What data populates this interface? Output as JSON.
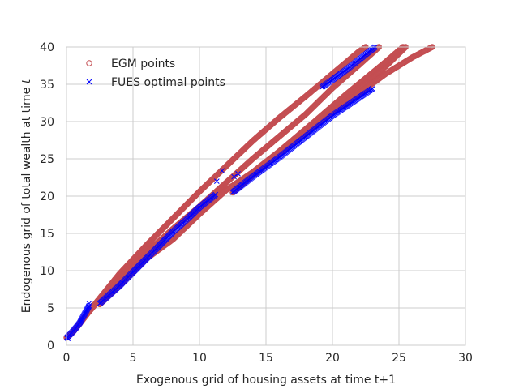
{
  "chart_data": {
    "type": "scatter",
    "title": "",
    "xlabel": "Exogenous grid of housing assets at time t+1",
    "ylabel_main": "Endogenous grid of total wealth at time ",
    "ylabel_var": "t",
    "xlim": [
      0,
      30
    ],
    "ylim": [
      0,
      40
    ],
    "xticks": [
      "0",
      "5",
      "10",
      "15",
      "20",
      "25",
      "30"
    ],
    "yticks": [
      "0",
      "5",
      "10",
      "15",
      "20",
      "25",
      "30",
      "35",
      "40"
    ],
    "grid": true,
    "legend_position": "top-left",
    "series": [
      {
        "name": "EGM points",
        "marker": "circle",
        "color": "#c44e52",
        "branches": [
          [
            [
              0,
              1.0
            ],
            [
              0.5,
              1.8
            ],
            [
              1.0,
              2.9
            ],
            [
              1.6,
              4.3
            ],
            [
              2.5,
              6.2
            ],
            [
              4.0,
              8.9
            ],
            [
              6.0,
              12.4
            ],
            [
              8.0,
              15.6
            ],
            [
              10.0,
              18.6
            ],
            [
              12.0,
              21.8
            ],
            [
              14.0,
              25.0
            ],
            [
              16.0,
              28.0
            ],
            [
              18.0,
              31.0
            ],
            [
              20.0,
              34.5
            ],
            [
              22.0,
              37.6
            ],
            [
              23.5,
              40.0
            ]
          ],
          [
            [
              1.0,
              3.0
            ],
            [
              2.0,
              5.2
            ],
            [
              4.0,
              9.6
            ],
            [
              6.0,
              13.4
            ],
            [
              8.0,
              17.0
            ],
            [
              10.0,
              20.6
            ],
            [
              12.0,
              24.0
            ],
            [
              14.0,
              27.4
            ],
            [
              16.0,
              30.5
            ],
            [
              18.0,
              33.4
            ],
            [
              20.0,
              36.4
            ],
            [
              22.0,
              39.4
            ],
            [
              22.5,
              40.0
            ]
          ],
          [
            [
              2.5,
              5.5
            ],
            [
              4.0,
              8.0
            ],
            [
              6.0,
              11.6
            ],
            [
              8.0,
              14.2
            ],
            [
              10.0,
              17.6
            ],
            [
              12.0,
              20.8
            ],
            [
              14.0,
              23.2
            ],
            [
              16.0,
              26.0
            ],
            [
              18.0,
              29.0
            ],
            [
              20.0,
              31.6
            ],
            [
              22.0,
              34.6
            ],
            [
              24.0,
              37.4
            ],
            [
              25.5,
              40.0
            ]
          ],
          [
            [
              12.5,
              20.5
            ],
            [
              14.0,
              22.8
            ],
            [
              16.0,
              25.6
            ],
            [
              18.0,
              28.4
            ],
            [
              20.0,
              31.2
            ],
            [
              22.0,
              33.8
            ],
            [
              24.0,
              36.4
            ],
            [
              26.0,
              38.6
            ],
            [
              27.5,
              40.0
            ]
          ],
          [
            [
              12.5,
              20.5
            ],
            [
              15.0,
              24.4
            ],
            [
              18.0,
              29.0
            ],
            [
              21.0,
              33.6
            ],
            [
              24.0,
              38.0
            ],
            [
              25.3,
              40.0
            ]
          ]
        ]
      },
      {
        "name": "FUES optimal points",
        "marker": "x",
        "color": "#0000ff",
        "segments": [
          [
            [
              0,
              1.0
            ],
            [
              0.3,
              1.5
            ],
            [
              0.6,
              2.1
            ],
            [
              1.0,
              3.0
            ],
            [
              1.4,
              4.3
            ],
            [
              1.7,
              5.3
            ]
          ],
          [
            [
              2.5,
              5.6
            ],
            [
              4.0,
              8.0
            ],
            [
              5.0,
              9.8
            ],
            [
              6.0,
              11.6
            ],
            [
              7.0,
              13.4
            ],
            [
              8.0,
              15.2
            ],
            [
              9.0,
              16.8
            ],
            [
              10.0,
              18.5
            ],
            [
              11.2,
              20.2
            ]
          ],
          [
            [
              12.5,
              20.5
            ],
            [
              14.0,
              22.6
            ],
            [
              16.0,
              25.2
            ],
            [
              18.0,
              28.0
            ],
            [
              20.0,
              30.8
            ],
            [
              22.0,
              33.2
            ],
            [
              23.0,
              34.4
            ]
          ],
          [
            [
              19.2,
              34.6
            ],
            [
              20.0,
              35.6
            ],
            [
              21.0,
              36.9
            ],
            [
              22.0,
              38.3
            ],
            [
              23.2,
              40.0
            ]
          ]
        ],
        "scatter": [
          [
            11.3,
            22.0
          ],
          [
            11.7,
            23.4
          ],
          [
            12.6,
            22.6
          ],
          [
            12.9,
            23.0
          ],
          [
            1.7,
            5.6
          ],
          [
            0.1,
            0.9
          ]
        ]
      }
    ]
  }
}
